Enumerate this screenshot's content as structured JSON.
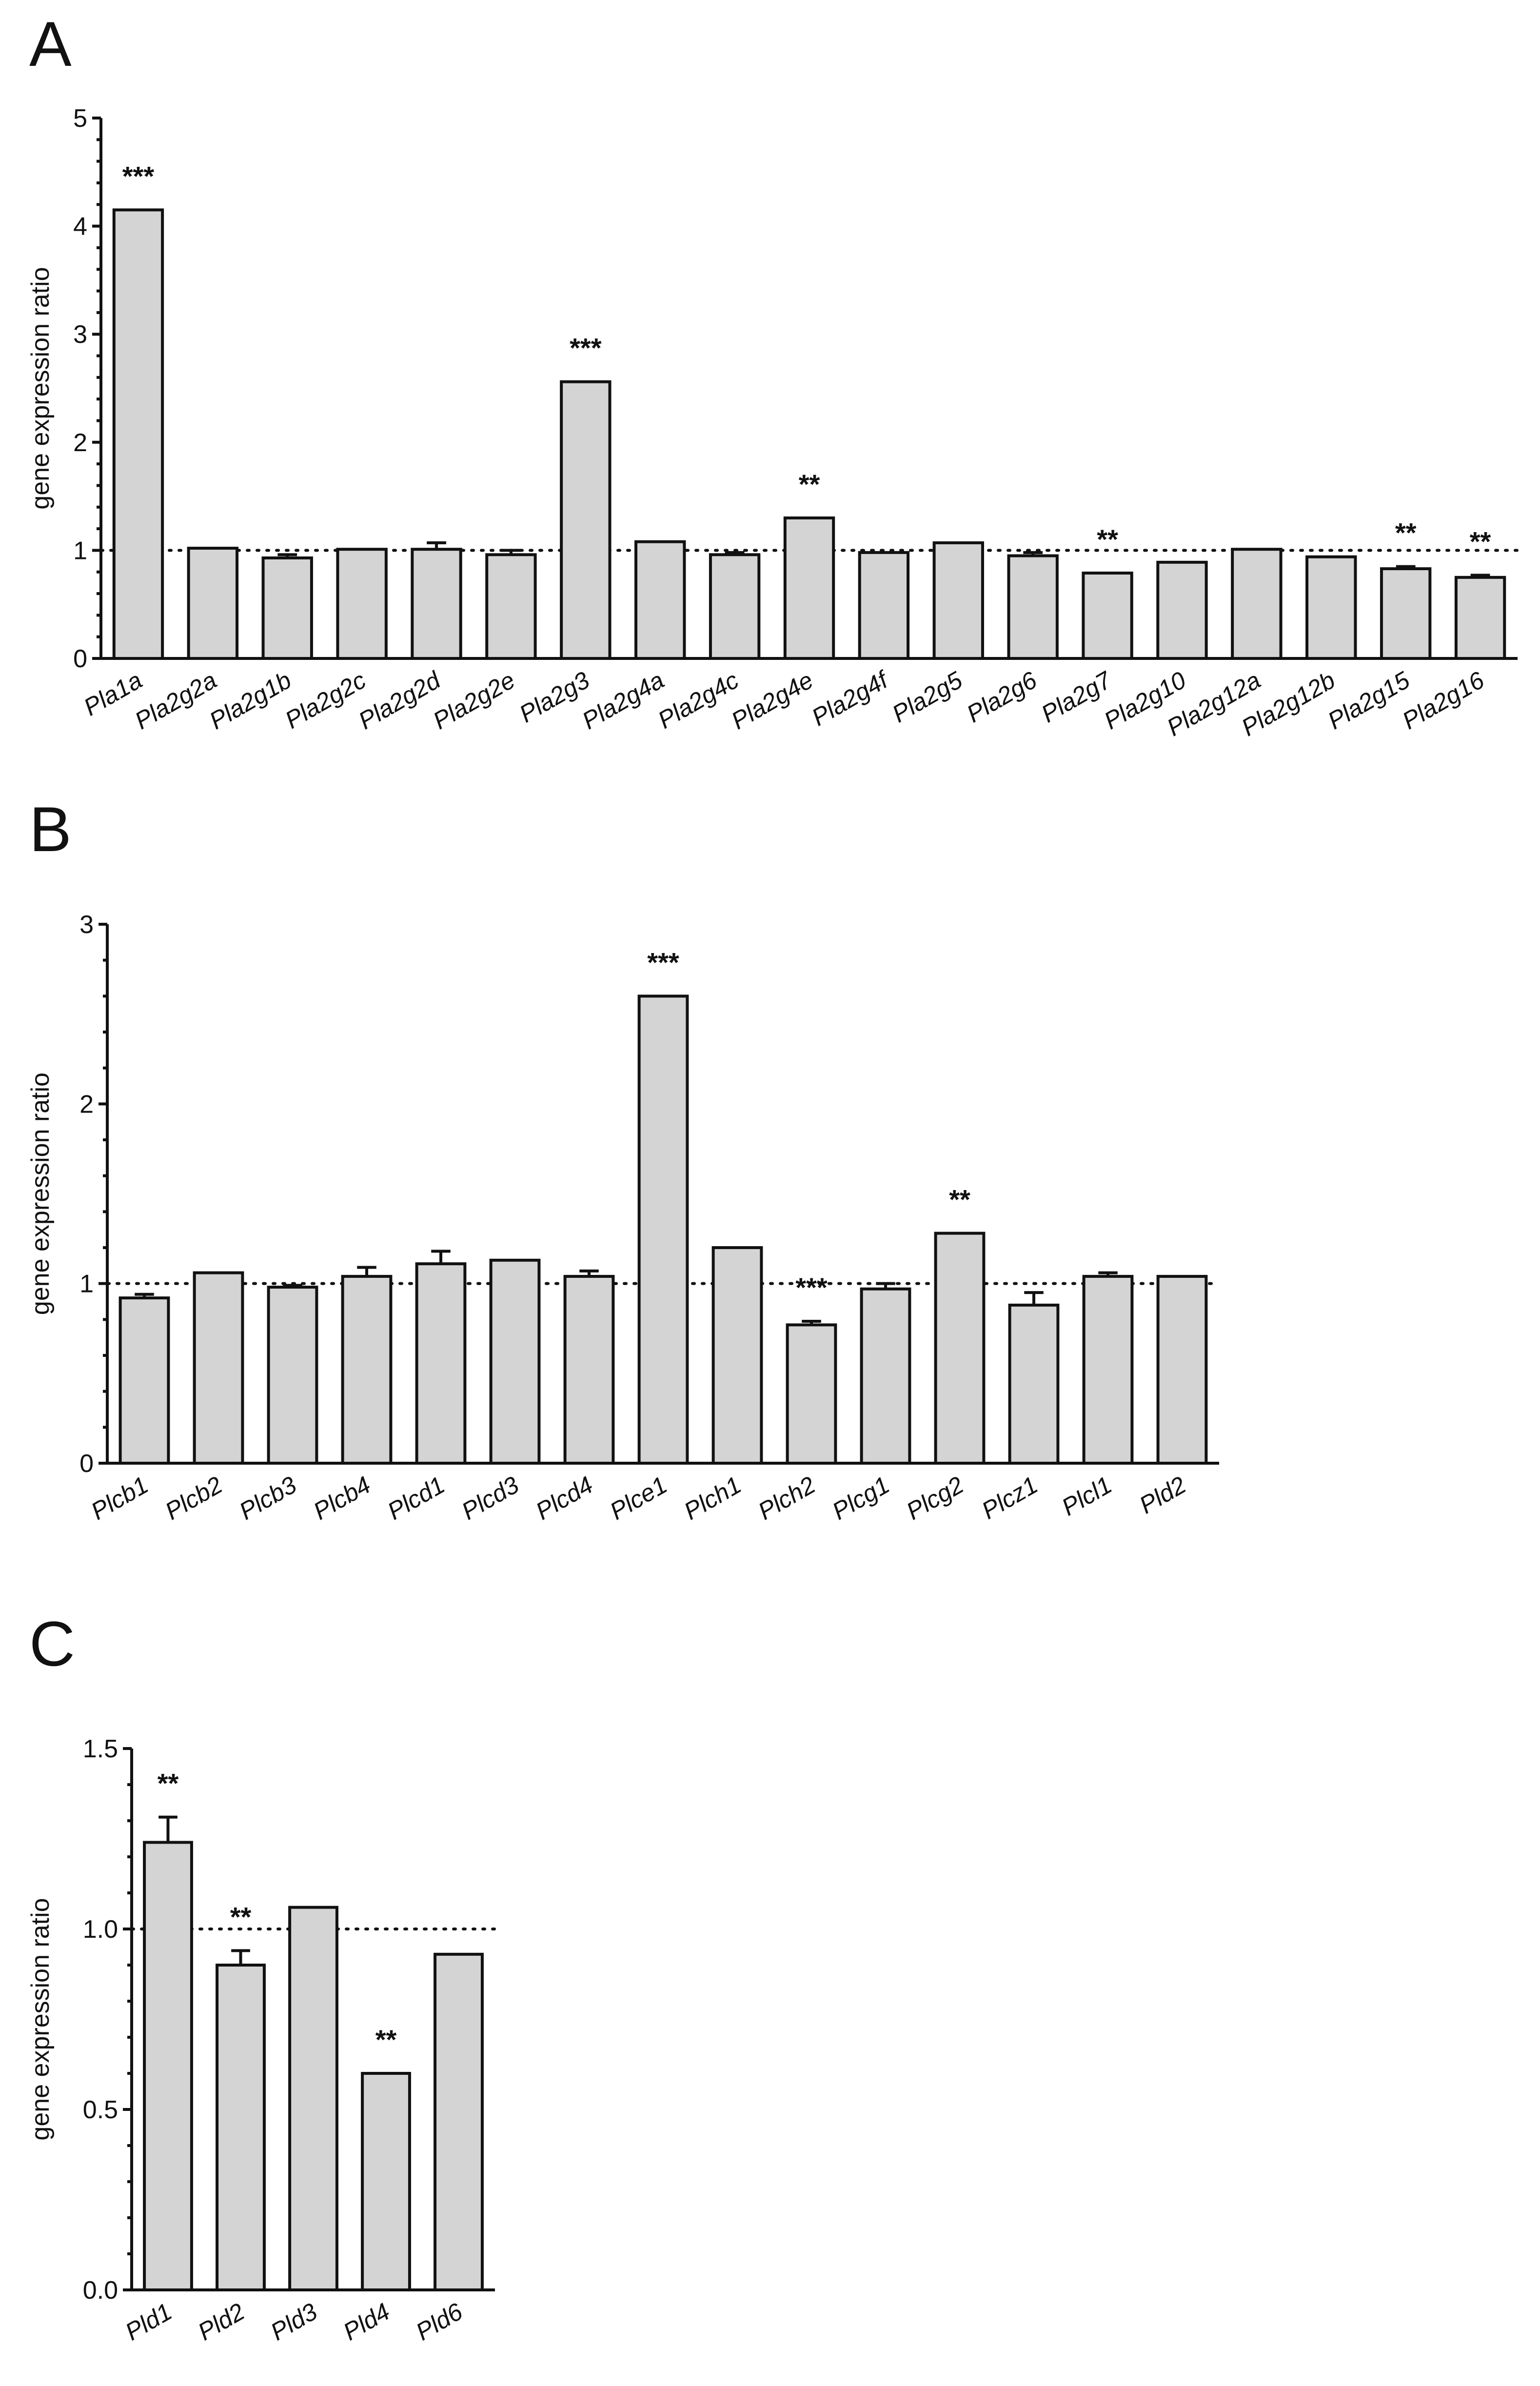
{
  "chart_data": [
    {
      "panel": "A",
      "type": "bar",
      "ylabel": "gene expression ratio",
      "ylim": [
        0,
        5
      ],
      "yticks": [
        "0",
        "1",
        "2",
        "3",
        "4",
        "5"
      ],
      "reference_line": 1,
      "categories": [
        "Pla1a",
        "Pla2g2a",
        "Pla2g1b",
        "Pla2g2c",
        "Pla2g2d",
        "Pla2g2e",
        "Pla2g3",
        "Pla2g4a",
        "Pla2g4c",
        "Pla2g4e",
        "Pla2g4f",
        "Pla2g5",
        "Pla2g6",
        "Pla2g7",
        "Pla2g10",
        "Pla2g12a",
        "Pla2g12b",
        "Pla2g15",
        "Pla2g16"
      ],
      "values": [
        4.15,
        1.02,
        0.93,
        1.01,
        1.01,
        0.96,
        2.56,
        1.08,
        0.96,
        1.3,
        0.98,
        1.07,
        0.95,
        0.79,
        0.89,
        1.01,
        0.94,
        0.83,
        0.75
      ],
      "errors": [
        0,
        0,
        0.03,
        0,
        0.06,
        0.04,
        0,
        0,
        0.02,
        0,
        0,
        0,
        0.03,
        0,
        0,
        0,
        0,
        0.02,
        0.02
      ],
      "significance": [
        "***",
        "",
        "",
        "",
        "",
        "",
        "***",
        "",
        "",
        "**",
        "",
        "",
        "",
        "**",
        "",
        "",
        "",
        "**",
        "**"
      ]
    },
    {
      "panel": "B",
      "type": "bar",
      "ylabel": "gene expression ratio",
      "ylim": [
        0,
        3
      ],
      "yticks": [
        "0",
        "1",
        "2",
        "3"
      ],
      "reference_line": 1,
      "categories": [
        "Plcb1",
        "Plcb2",
        "Plcb3",
        "Plcb4",
        "Plcd1",
        "Plcd3",
        "Plcd4",
        "Plce1",
        "Plch1",
        "Plch2",
        "Plcg1",
        "Plcg2",
        "Plcz1",
        "Plcl1",
        "Pld2"
      ],
      "values": [
        0.92,
        1.06,
        0.98,
        1.04,
        1.11,
        1.13,
        1.04,
        2.6,
        1.2,
        0.77,
        0.97,
        1.28,
        0.88,
        1.04,
        1.04
      ],
      "errors": [
        0.02,
        0,
        0.01,
        0.05,
        0.07,
        0,
        0.03,
        0,
        0,
        0.02,
        0.03,
        0,
        0.07,
        0.02,
        0
      ],
      "significance": [
        "",
        "",
        "",
        "",
        "",
        "",
        "",
        "***",
        "",
        "***",
        "",
        "**",
        "",
        "",
        ""
      ]
    },
    {
      "panel": "C",
      "type": "bar",
      "ylabel": "gene expression ratio",
      "ylim": [
        0,
        1.5
      ],
      "yticks": [
        "0.0",
        "0.5",
        "1.0",
        "1.5"
      ],
      "reference_line": 1,
      "categories": [
        "Pld1",
        "Pld2",
        "Pld3",
        "Pld4",
        "Pld6"
      ],
      "values": [
        1.24,
        0.9,
        1.06,
        0.6,
        0.93
      ],
      "errors": [
        0.07,
        0.04,
        0,
        0,
        0
      ],
      "significance": [
        "**",
        "**",
        "",
        "**",
        ""
      ]
    }
  ]
}
